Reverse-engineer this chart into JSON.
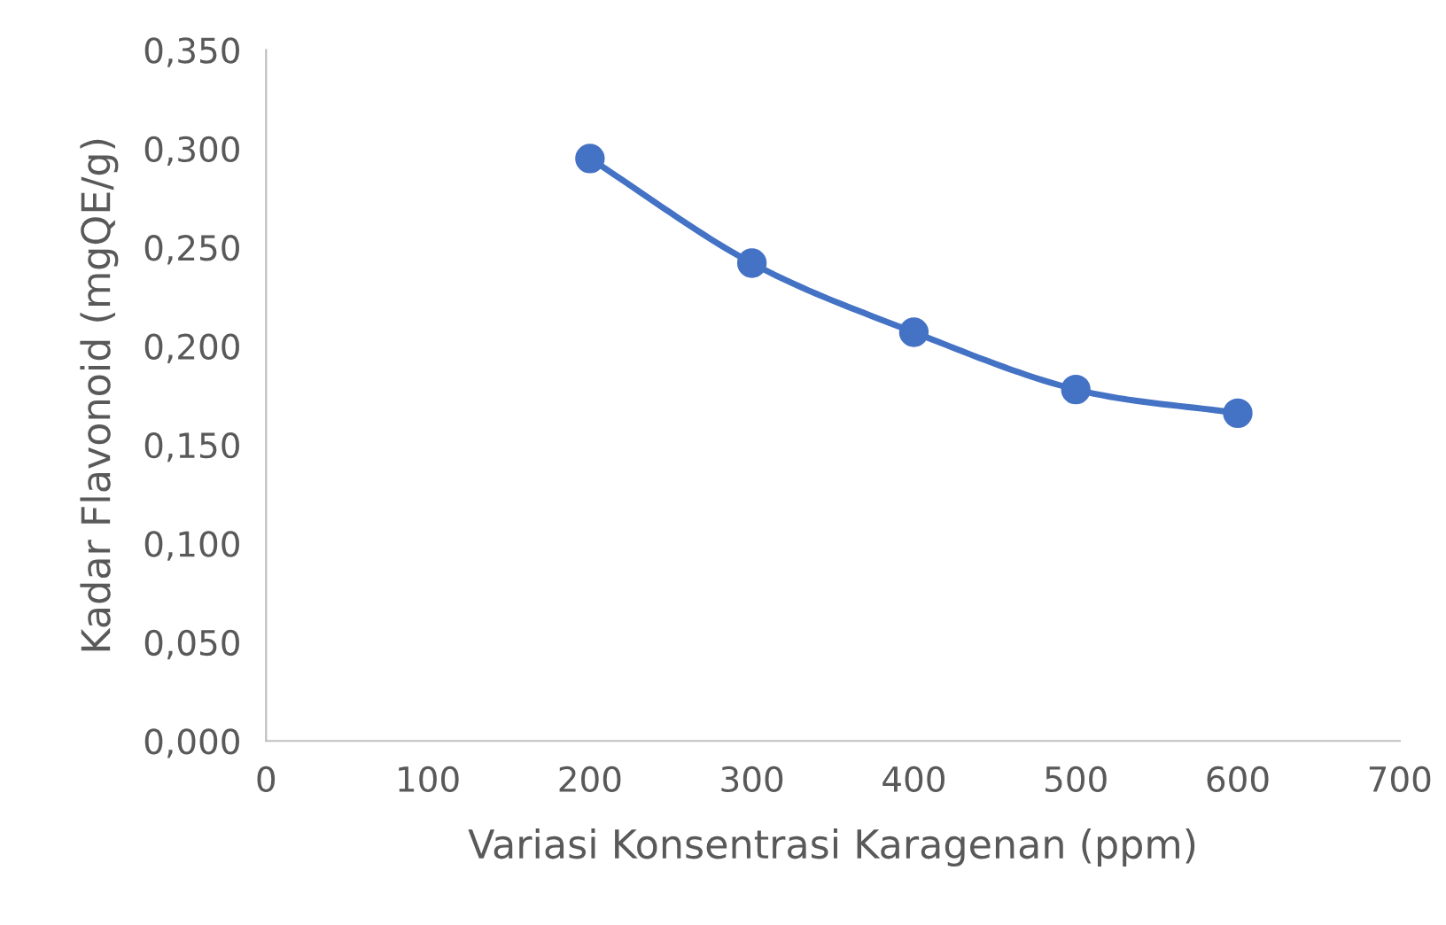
{
  "chart_data": {
    "type": "line",
    "xlabel": "Variasi Konsentrasi Karagenan (ppm)",
    "ylabel": "Kadar Flavonoid (mgQE/g)",
    "x": [
      200,
      300,
      400,
      500,
      600
    ],
    "series": [
      {
        "color": "#4472c4",
        "values": [
          0.295,
          0.242,
          0.207,
          0.178,
          0.166
        ]
      }
    ],
    "xlim": [
      0,
      700
    ],
    "xticks": [
      0,
      100,
      200,
      300,
      400,
      500,
      600,
      700
    ],
    "ylim": [
      0,
      0.35
    ],
    "yticks": [
      {
        "value": 0,
        "label": "0,000"
      },
      {
        "value": 0.05,
        "label": "0,050"
      },
      {
        "value": 0.1,
        "label": "0,100"
      },
      {
        "value": 0.15,
        "label": "0,150"
      },
      {
        "value": 0.2,
        "label": "0,200"
      },
      {
        "value": 0.25,
        "label": "0,250"
      },
      {
        "value": 0.3,
        "label": "0,300"
      },
      {
        "value": 0.35,
        "label": "0,350"
      }
    ],
    "grid": false,
    "legend": false,
    "marker": "circle",
    "line_style": "solid"
  }
}
